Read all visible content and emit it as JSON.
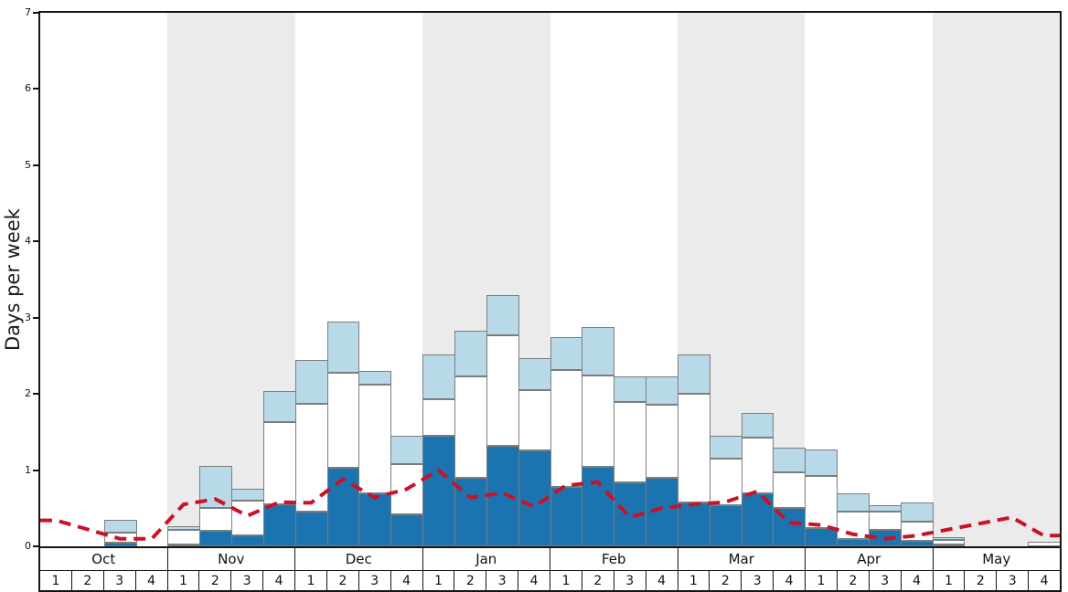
{
  "chart_data": {
    "type": "bar",
    "stacked": true,
    "title": "",
    "ylabel": "Days per week",
    "ylim": [
      0,
      7
    ],
    "yticks": [
      "0",
      "1",
      "2",
      "3",
      "4",
      "5",
      "6",
      "7"
    ],
    "grid": false,
    "legend_position": "none",
    "months": [
      "Oct",
      "Nov",
      "Dec",
      "Jan",
      "Feb",
      "Mar",
      "Apr",
      "May"
    ],
    "week_labels": [
      "1",
      "2",
      "3",
      "4"
    ],
    "band_colors": {
      "even": "#ffffff",
      "odd": "#ebebeb"
    },
    "bar_border_color": "#7d7d7d",
    "series": [
      {
        "name": "series-dark-blue",
        "color": "#1b74af",
        "values": [
          0,
          0,
          0.05,
          0,
          0.02,
          0.2,
          0.15,
          0.55,
          0.46,
          1.03,
          0.7,
          0.42,
          1.45,
          0.9,
          1.32,
          1.26,
          0.78,
          1.04,
          0.84,
          0.9,
          0.58,
          0.54,
          0.7,
          0.5,
          0.24,
          0.1,
          0.22,
          0.07,
          0.02,
          0,
          0,
          0
        ]
      },
      {
        "name": "series-white",
        "color": "#ffffff",
        "values": [
          0,
          0,
          0.13,
          0,
          0.2,
          0.3,
          0.45,
          1.08,
          1.41,
          1.25,
          1.42,
          0.66,
          0.48,
          1.33,
          1.45,
          0.79,
          1.53,
          1.2,
          1.05,
          0.96,
          1.42,
          0.61,
          0.73,
          0.47,
          0.68,
          0.36,
          0.24,
          0.25,
          0.06,
          0,
          0,
          0.06
        ]
      },
      {
        "name": "series-light-blue",
        "color": "#b8d9e8",
        "values": [
          0,
          0,
          0.17,
          0,
          0.05,
          0.55,
          0.15,
          0.41,
          0.58,
          0.67,
          0.18,
          0.37,
          0.59,
          0.6,
          0.53,
          0.42,
          0.44,
          0.64,
          0.34,
          0.37,
          0.52,
          0.3,
          0.32,
          0.32,
          0.35,
          0.24,
          0.08,
          0.25,
          0.04,
          0,
          0,
          0
        ]
      }
    ],
    "line": {
      "name": "average-dashed-line",
      "color": "#cb1126",
      "style": "dashed",
      "values": [
        0.34,
        0.22,
        0.1,
        0.1,
        0.55,
        0.62,
        0.4,
        0.58,
        0.57,
        0.88,
        0.64,
        0.75,
        1.0,
        0.64,
        0.7,
        0.52,
        0.8,
        0.84,
        0.38,
        0.5,
        0.55,
        0.58,
        0.72,
        0.31,
        0.28,
        0.16,
        0.1,
        0.14,
        0.22,
        0.3,
        0.38,
        0.14
      ]
    }
  }
}
